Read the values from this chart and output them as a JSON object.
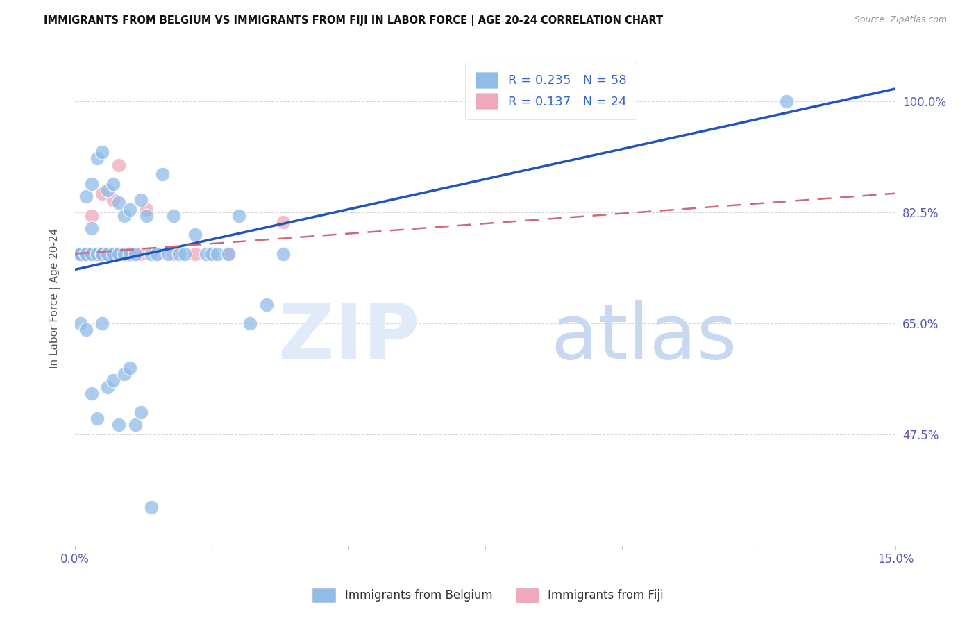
{
  "title": "IMMIGRANTS FROM BELGIUM VS IMMIGRANTS FROM FIJI IN LABOR FORCE | AGE 20-24 CORRELATION CHART",
  "source": "Source: ZipAtlas.com",
  "ylabel": "In Labor Force | Age 20-24",
  "xlim": [
    0.0,
    0.15
  ],
  "ylim": [
    0.3,
    1.08
  ],
  "ytick_positions": [
    0.475,
    0.65,
    0.825,
    1.0
  ],
  "ytick_labels": [
    "47.5%",
    "65.0%",
    "82.5%",
    "100.0%"
  ],
  "xtick_positions": [
    0.0,
    0.15
  ],
  "xtick_labels": [
    "0.0%",
    "15.0%"
  ],
  "legend_entries": [
    {
      "label": "R = 0.235   N = 58",
      "color": "#aac8f0"
    },
    {
      "label": "R = 0.137   N = 24",
      "color": "#f0a8b8"
    }
  ],
  "belgium_line": {
    "x": [
      0.0,
      0.15
    ],
    "y": [
      0.735,
      1.02
    ]
  },
  "fiji_line": {
    "x": [
      0.0,
      0.15
    ],
    "y": [
      0.76,
      0.855
    ]
  },
  "scatter_color_belgium": "#90bce8",
  "scatter_color_fiji": "#f0a8bc",
  "line_color_belgium": "#2255bb",
  "line_color_fiji": "#d06878",
  "background_color": "#ffffff",
  "grid_color": "#d8d8d8",
  "belgium_x": [
    0.001,
    0.001,
    0.001,
    0.002,
    0.002,
    0.002,
    0.003,
    0.003,
    0.003,
    0.004,
    0.004,
    0.005,
    0.005,
    0.005,
    0.006,
    0.006,
    0.006,
    0.007,
    0.007,
    0.008,
    0.008,
    0.009,
    0.009,
    0.01,
    0.01,
    0.011,
    0.012,
    0.013,
    0.014,
    0.015,
    0.016,
    0.017,
    0.018,
    0.019,
    0.02,
    0.022,
    0.024,
    0.025,
    0.026,
    0.028,
    0.03,
    0.032,
    0.035,
    0.038,
    0.001,
    0.002,
    0.003,
    0.004,
    0.005,
    0.006,
    0.007,
    0.008,
    0.009,
    0.01,
    0.011,
    0.012,
    0.014,
    0.13
  ],
  "belgium_y": [
    0.76,
    0.76,
    0.76,
    0.76,
    0.76,
    0.85,
    0.76,
    0.8,
    0.87,
    0.76,
    0.91,
    0.76,
    0.76,
    0.92,
    0.76,
    0.76,
    0.86,
    0.76,
    0.87,
    0.76,
    0.84,
    0.76,
    0.82,
    0.76,
    0.83,
    0.76,
    0.845,
    0.82,
    0.76,
    0.76,
    0.885,
    0.76,
    0.82,
    0.76,
    0.76,
    0.79,
    0.76,
    0.76,
    0.76,
    0.76,
    0.82,
    0.65,
    0.68,
    0.76,
    0.65,
    0.64,
    0.54,
    0.5,
    0.65,
    0.55,
    0.56,
    0.49,
    0.57,
    0.58,
    0.49,
    0.51,
    0.36,
    1.0
  ],
  "fiji_x": [
    0.001,
    0.002,
    0.002,
    0.003,
    0.003,
    0.004,
    0.004,
    0.005,
    0.005,
    0.006,
    0.007,
    0.007,
    0.008,
    0.008,
    0.009,
    0.01,
    0.011,
    0.012,
    0.013,
    0.015,
    0.018,
    0.022,
    0.028,
    0.038
  ],
  "fiji_y": [
    0.76,
    0.76,
    0.76,
    0.76,
    0.82,
    0.76,
    0.76,
    0.76,
    0.855,
    0.76,
    0.76,
    0.845,
    0.76,
    0.9,
    0.76,
    0.76,
    0.76,
    0.76,
    0.83,
    0.76,
    0.76,
    0.76,
    0.76,
    0.81
  ]
}
